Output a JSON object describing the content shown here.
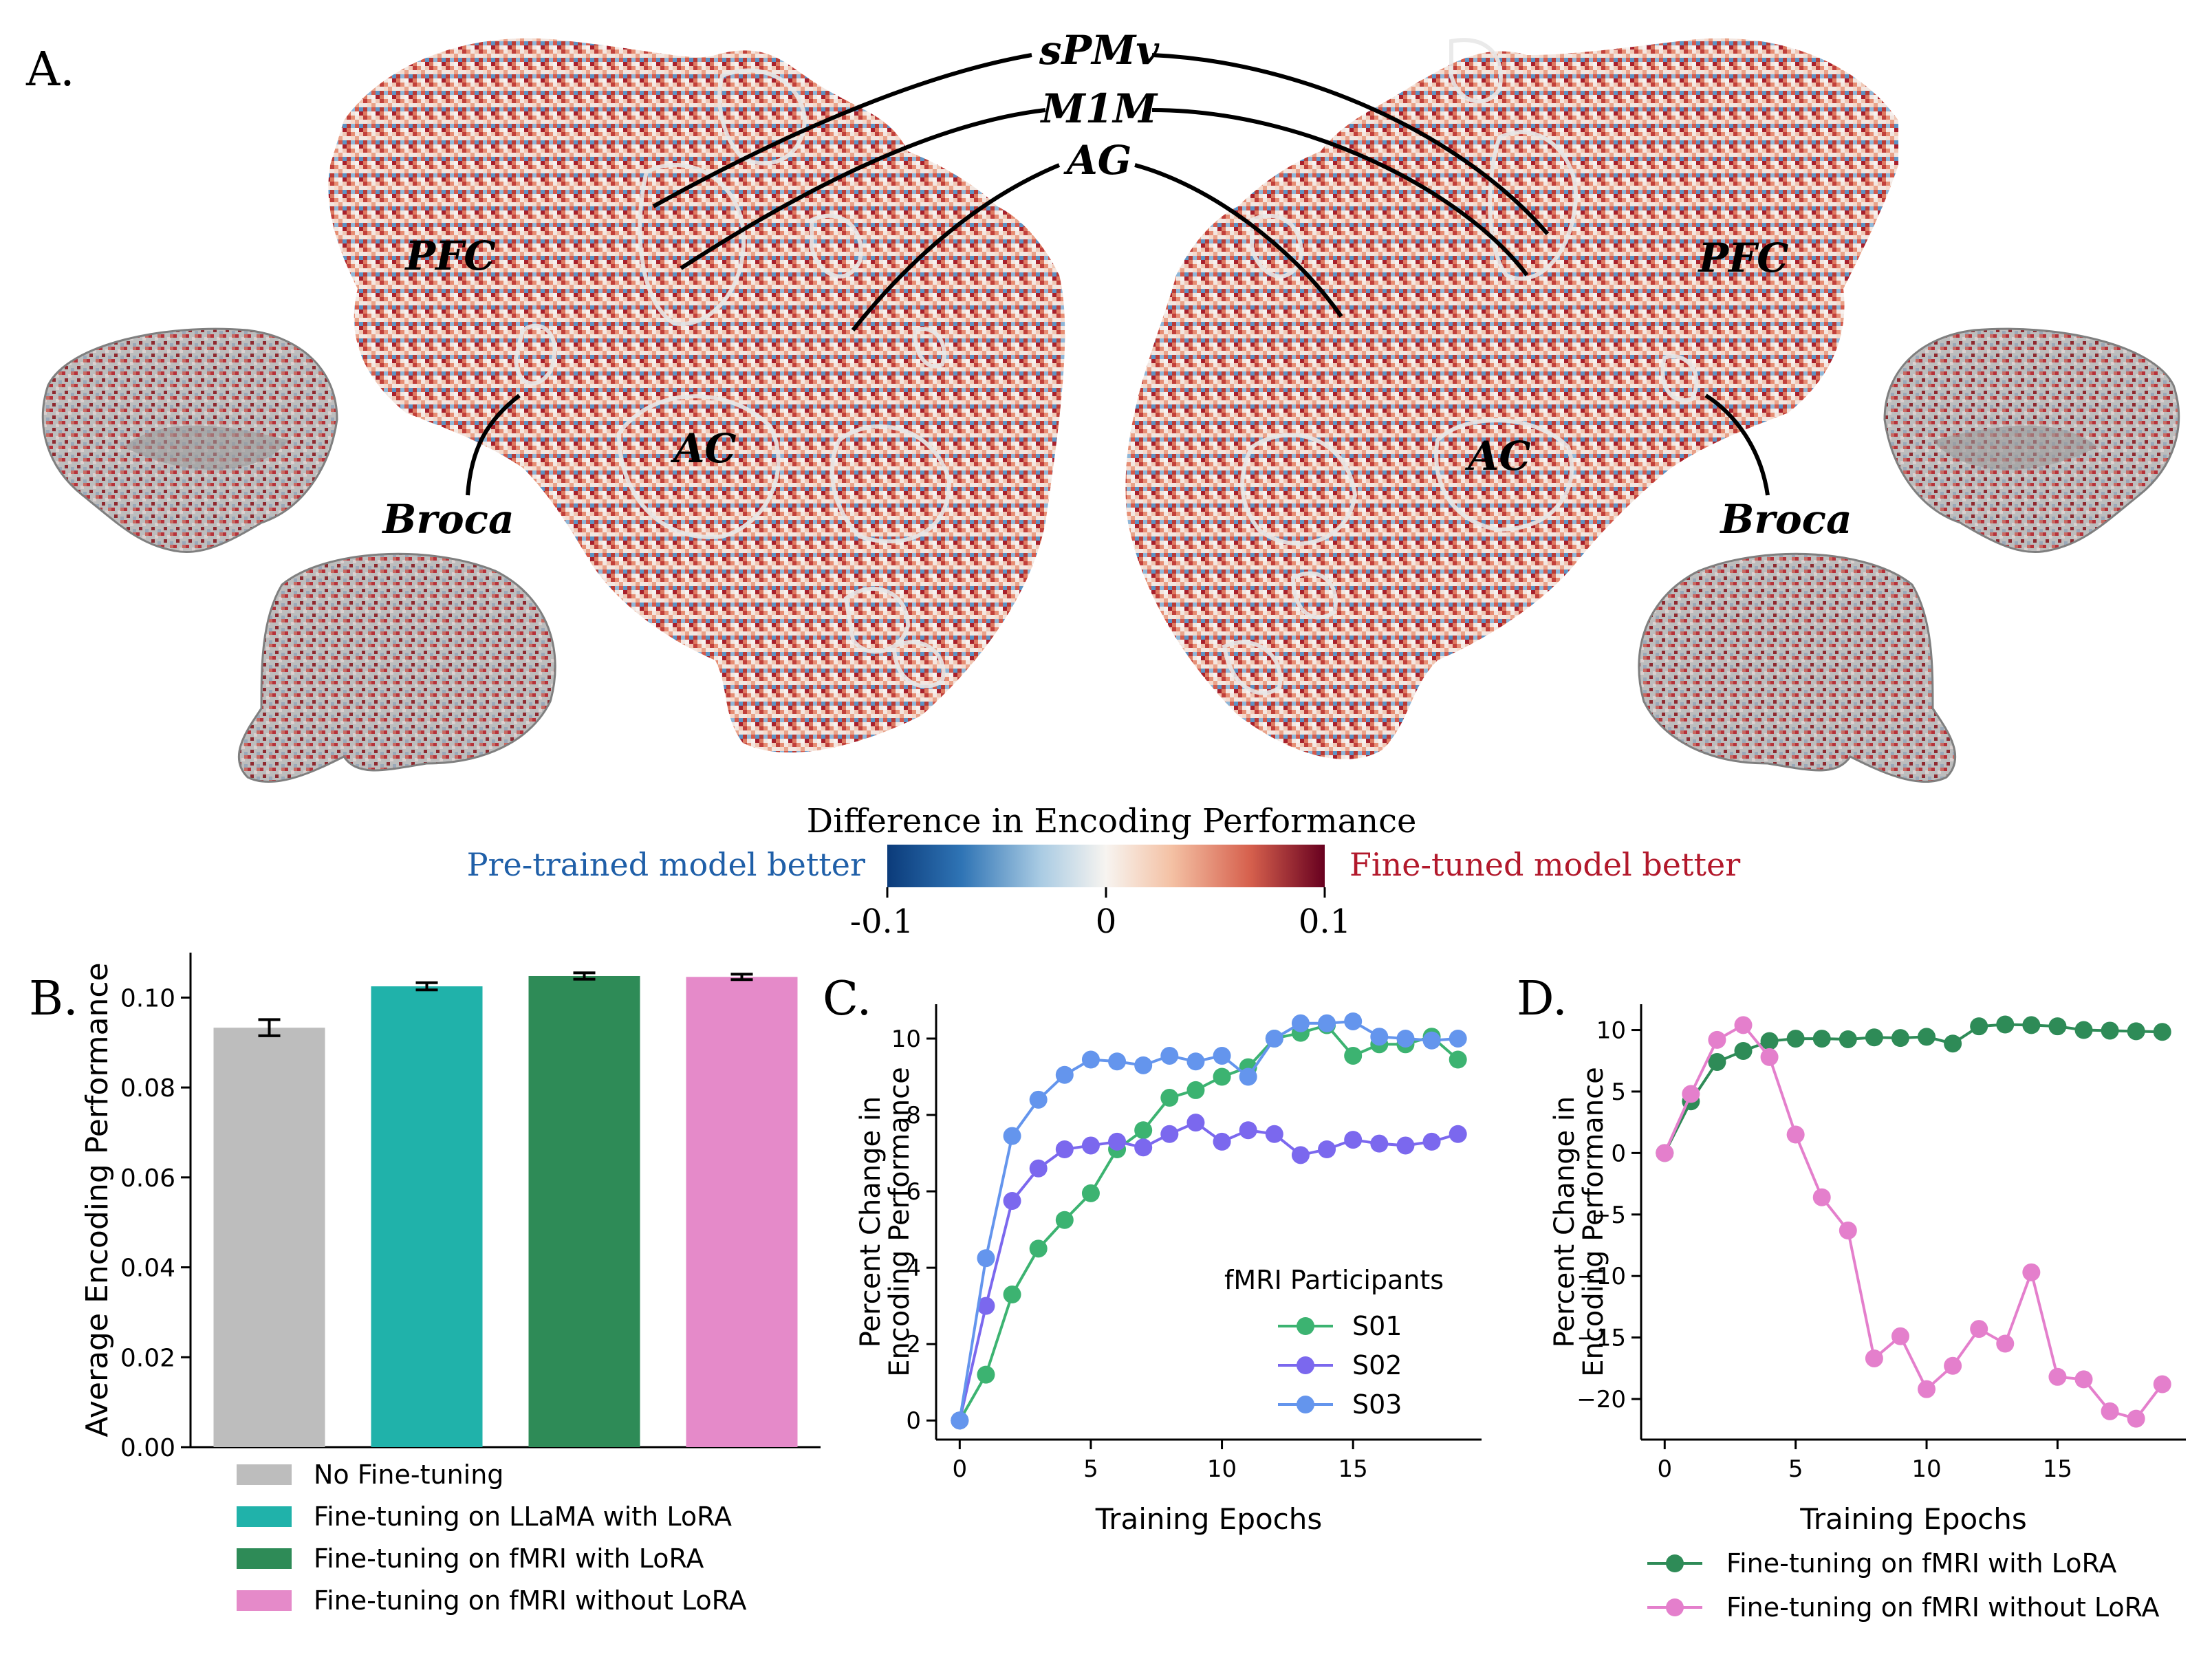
{
  "panels": {
    "a": "A.",
    "b": "B.",
    "c": "C.",
    "d": "D."
  },
  "brain_labels": {
    "spmv": "sPMv",
    "m1m": "M1M",
    "ag": "AG",
    "pfc_left": "PFC",
    "pfc_right": "PFC",
    "ac_left": "AC",
    "ac_right": "AC",
    "broca_left": "Broca",
    "broca_right": "Broca"
  },
  "colorbar": {
    "title": "Difference in Encoding Performance",
    "left_label": "Pre-trained model better",
    "right_label": "Fine-tuned model better",
    "ticks": [
      "-0.1",
      "0",
      "0.1"
    ],
    "min": -0.1,
    "max": 0.1,
    "colors": [
      "#0b3b7a",
      "#4a90c4",
      "#d6e6f1",
      "#f7f4f0",
      "#f4c1a4",
      "#d6604d",
      "#67001f"
    ],
    "left_color": "#1f5fa8",
    "right_color": "#b2182b"
  },
  "chart_data": [
    {
      "id": "B",
      "type": "bar",
      "ylabel": "Average Encoding Performance",
      "ylim": [
        0,
        0.11
      ],
      "yticks": [
        0,
        0.02,
        0.04,
        0.06,
        0.08,
        0.1
      ],
      "yticklabels": [
        "0.00",
        "0.02",
        "0.04",
        "0.06",
        "0.08",
        "0.10"
      ],
      "categories": [
        "No Fine-tuning",
        "Fine-tuning on LLaMA with LoRA",
        "Fine-tuning on fMRI with LoRA",
        "Fine-tuning on fMRI without LoRA"
      ],
      "values": [
        0.0933,
        0.1025,
        0.1048,
        0.1046
      ],
      "errors": [
        0.0018,
        0.0008,
        0.0007,
        0.0006
      ],
      "colors": [
        "#bdbdbd",
        "#20b2aa",
        "#2e8b57",
        "#e58ac9"
      ]
    },
    {
      "id": "C",
      "type": "line",
      "xlabel": "Training Epochs",
      "ylabel": "Percent Change in\nEncoding Performance",
      "xlim": [
        -0.9,
        19.9
      ],
      "ylim": [
        -0.5,
        10.9
      ],
      "xticks": [
        0,
        5,
        10,
        15
      ],
      "yticks": [
        0,
        2,
        4,
        6,
        8,
        10
      ],
      "legend_title": "fMRI Participants",
      "legend_position": "center-right",
      "x": [
        0,
        1,
        2,
        3,
        4,
        5,
        6,
        7,
        8,
        9,
        10,
        11,
        12,
        13,
        14,
        15,
        16,
        17,
        18,
        19
      ],
      "series": [
        {
          "name": "S01",
          "color": "#3cb371",
          "values": [
            0,
            1.2,
            3.3,
            4.5,
            5.25,
            5.95,
            7.1,
            7.6,
            8.45,
            8.65,
            9.0,
            9.25,
            10.0,
            10.15,
            10.35,
            9.55,
            9.85,
            9.85,
            10.05,
            9.45
          ]
        },
        {
          "name": "S02",
          "color": "#7b68ee",
          "values": [
            0,
            3.0,
            5.75,
            6.6,
            7.1,
            7.2,
            7.3,
            7.15,
            7.5,
            7.8,
            7.3,
            7.6,
            7.5,
            6.95,
            7.1,
            7.35,
            7.25,
            7.2,
            7.3,
            7.5
          ]
        },
        {
          "name": "S03",
          "color": "#6495ed",
          "values": [
            0,
            4.25,
            7.45,
            8.4,
            9.05,
            9.45,
            9.4,
            9.3,
            9.55,
            9.4,
            9.55,
            9.0,
            10.0,
            10.4,
            10.4,
            10.45,
            10.05,
            10.0,
            9.95,
            10.0
          ]
        }
      ]
    },
    {
      "id": "D",
      "type": "line",
      "xlabel": "Training Epochs",
      "ylabel": "Percent Change in\nEncoding Performance",
      "xlim": [
        -0.9,
        19.9
      ],
      "ylim": [
        -23.3,
        12.1
      ],
      "xticks": [
        0,
        5,
        10,
        15
      ],
      "yticks": [
        -20,
        -15,
        -10,
        -5,
        0,
        5,
        10
      ],
      "yticklabels": [
        "−20",
        "−15",
        "−10",
        "−5",
        "0",
        "5",
        "10"
      ],
      "legend_position": "below",
      "x": [
        0,
        1,
        2,
        3,
        4,
        5,
        6,
        7,
        8,
        9,
        10,
        11,
        12,
        13,
        14,
        15,
        16,
        17,
        18,
        19
      ],
      "series": [
        {
          "name": "Fine-tuning on fMRI with LoRA",
          "color": "#2e8b57",
          "values": [
            0,
            4.2,
            7.4,
            8.3,
            9.1,
            9.3,
            9.3,
            9.25,
            9.4,
            9.35,
            9.45,
            8.9,
            10.3,
            10.45,
            10.4,
            10.3,
            10.0,
            9.95,
            9.9,
            9.85
          ]
        },
        {
          "name": "Fine-tuning on fMRI without LoRA",
          "color": "#e47fcc",
          "values": [
            0,
            4.8,
            9.2,
            10.4,
            7.8,
            1.5,
            -3.6,
            -6.3,
            -16.7,
            -14.9,
            -19.2,
            -17.3,
            -14.3,
            -15.5,
            -9.7,
            -18.2,
            -18.4,
            -21.0,
            -21.6,
            -18.8
          ]
        }
      ]
    }
  ]
}
